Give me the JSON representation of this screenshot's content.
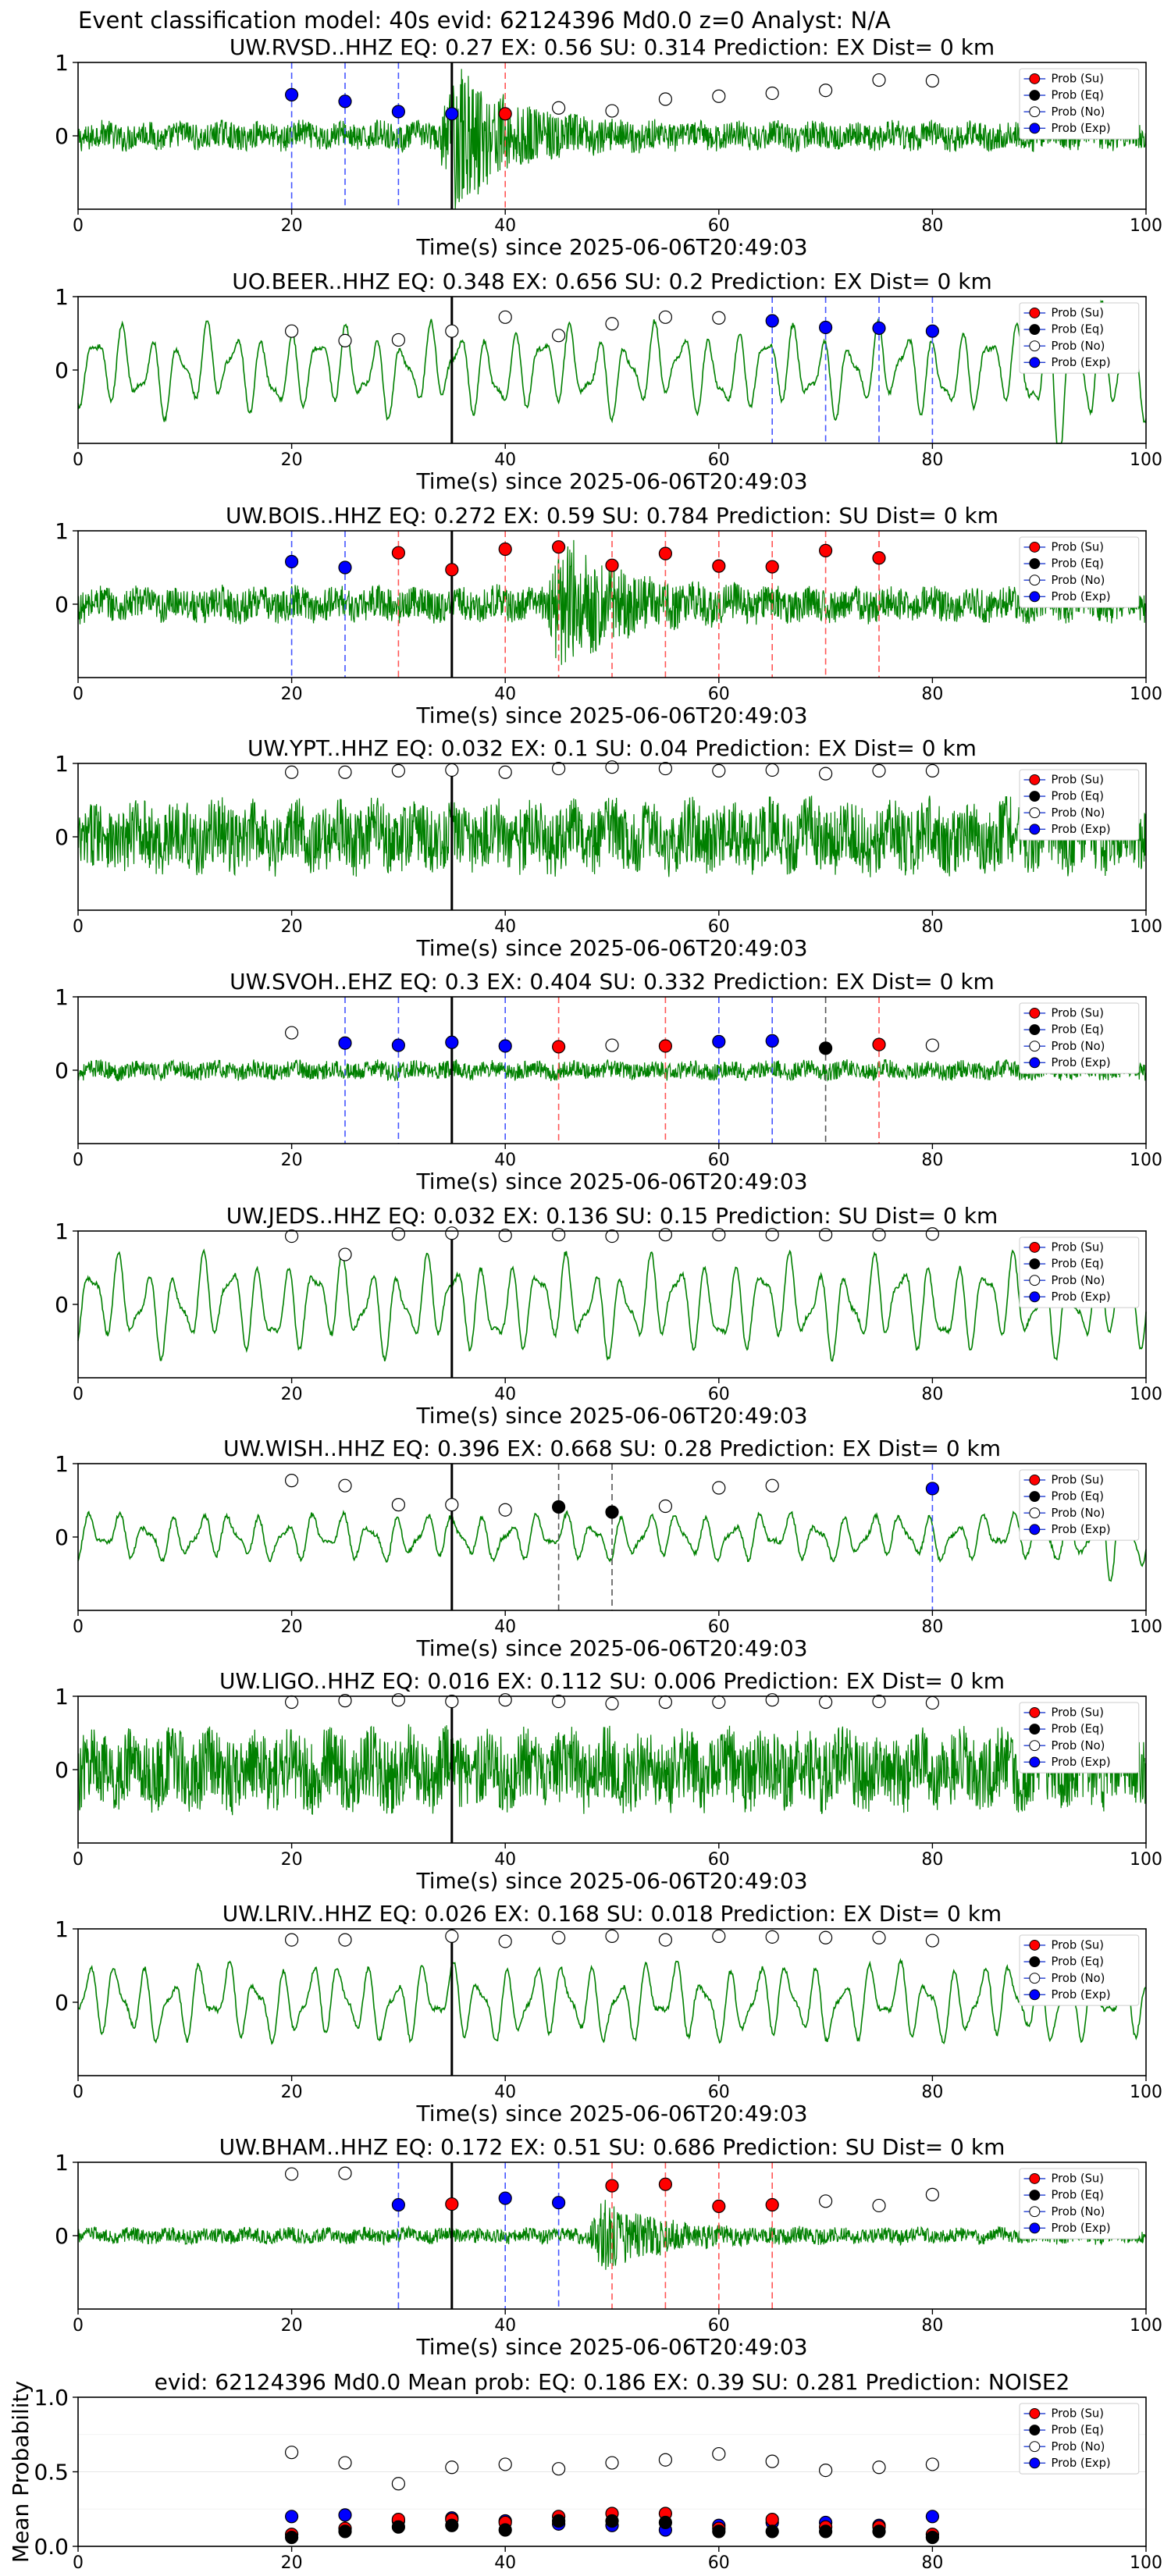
{
  "figure_title": "Event classification model: 40s evid: 62124396 Md0.0 z=0 Analyst: N/A",
  "legend_labels": [
    "Prob (Su)",
    "Prob (Eq)",
    "Prob (No)",
    "Prob (Exp)"
  ],
  "colors": {
    "su": "#ff0000",
    "eq": "#000000",
    "no": "#ffffff",
    "exp": "#0000ff",
    "waveform": "#008000"
  },
  "xlabel": "Time(s) since 2025-06-06T20:49:03",
  "chart_data": [
    {
      "type": "line",
      "title": "UW.RVSD..HHZ   EQ: 0.27  EX: 0.56  SU: 0.314   Prediction: EX    Dist= 0 km",
      "xlabel": "Time(s) since 2025-06-06T20:49:03",
      "xlim": [
        0,
        100
      ],
      "ylim": [
        -1,
        1
      ],
      "xticks": [
        "0",
        "20",
        "40",
        "60",
        "80",
        "100"
      ],
      "yticks": [
        "1",
        "0"
      ],
      "waveform": {
        "style": "noisy",
        "amp": 0.18,
        "event_at": 35,
        "event_amp": 0.95
      },
      "origin_line": 35,
      "markers": [
        {
          "x": 20,
          "y": 0.56,
          "cls": "exp"
        },
        {
          "x": 25,
          "y": 0.47,
          "cls": "exp"
        },
        {
          "x": 30,
          "y": 0.33,
          "cls": "exp"
        },
        {
          "x": 35,
          "y": 0.3,
          "cls": "exp"
        },
        {
          "x": 40,
          "y": 0.3,
          "cls": "su"
        },
        {
          "x": 45,
          "y": 0.38,
          "cls": "no"
        },
        {
          "x": 50,
          "y": 0.34,
          "cls": "no"
        },
        {
          "x": 55,
          "y": 0.5,
          "cls": "no"
        },
        {
          "x": 60,
          "y": 0.54,
          "cls": "no"
        },
        {
          "x": 65,
          "y": 0.58,
          "cls": "no"
        },
        {
          "x": 70,
          "y": 0.62,
          "cls": "no"
        },
        {
          "x": 75,
          "y": 0.76,
          "cls": "no"
        },
        {
          "x": 80,
          "y": 0.75,
          "cls": "no"
        }
      ]
    },
    {
      "type": "line",
      "title": "UO.BEER..HHZ   EQ: 0.348  EX: 0.656  SU: 0.2   Prediction: EX    Dist= 0 km",
      "xlabel": "Time(s) since 2025-06-06T20:49:03",
      "xlim": [
        0,
        100
      ],
      "ylim": [
        -1,
        1
      ],
      "xticks": [
        "0",
        "20",
        "40",
        "60",
        "80",
        "100"
      ],
      "yticks": [
        "1",
        "0"
      ],
      "waveform": {
        "style": "wave",
        "amp": 0.55,
        "event_at": 90,
        "event_amp": 0.7
      },
      "origin_line": 35,
      "markers": [
        {
          "x": 20,
          "y": 0.53,
          "cls": "no"
        },
        {
          "x": 25,
          "y": 0.4,
          "cls": "no"
        },
        {
          "x": 30,
          "y": 0.41,
          "cls": "no"
        },
        {
          "x": 35,
          "y": 0.53,
          "cls": "no"
        },
        {
          "x": 40,
          "y": 0.72,
          "cls": "no"
        },
        {
          "x": 45,
          "y": 0.47,
          "cls": "no"
        },
        {
          "x": 50,
          "y": 0.63,
          "cls": "no"
        },
        {
          "x": 55,
          "y": 0.72,
          "cls": "no"
        },
        {
          "x": 60,
          "y": 0.71,
          "cls": "no"
        },
        {
          "x": 65,
          "y": 0.67,
          "cls": "exp"
        },
        {
          "x": 70,
          "y": 0.58,
          "cls": "exp"
        },
        {
          "x": 75,
          "y": 0.57,
          "cls": "exp"
        },
        {
          "x": 80,
          "y": 0.53,
          "cls": "exp"
        }
      ]
    },
    {
      "type": "line",
      "title": "UW.BOIS..HHZ   EQ: 0.272  EX: 0.59  SU: 0.784   Prediction: SU    Dist= 0 km",
      "xlabel": "Time(s) since 2025-06-06T20:49:03",
      "xlim": [
        0,
        100
      ],
      "ylim": [
        -1,
        1
      ],
      "xticks": [
        "0",
        "20",
        "40",
        "60",
        "80",
        "100"
      ],
      "yticks": [
        "1",
        "0"
      ],
      "waveform": {
        "style": "noisy",
        "amp": 0.22,
        "event_at": 45,
        "event_amp": 0.8
      },
      "origin_line": 35,
      "markers": [
        {
          "x": 20,
          "y": 0.58,
          "cls": "exp"
        },
        {
          "x": 25,
          "y": 0.5,
          "cls": "exp"
        },
        {
          "x": 30,
          "y": 0.7,
          "cls": "su"
        },
        {
          "x": 35,
          "y": 0.47,
          "cls": "su"
        },
        {
          "x": 40,
          "y": 0.75,
          "cls": "su"
        },
        {
          "x": 45,
          "y": 0.78,
          "cls": "su"
        },
        {
          "x": 50,
          "y": 0.53,
          "cls": "su"
        },
        {
          "x": 55,
          "y": 0.69,
          "cls": "su"
        },
        {
          "x": 60,
          "y": 0.52,
          "cls": "su"
        },
        {
          "x": 65,
          "y": 0.51,
          "cls": "su"
        },
        {
          "x": 70,
          "y": 0.73,
          "cls": "su"
        },
        {
          "x": 75,
          "y": 0.63,
          "cls": "su"
        }
      ]
    },
    {
      "type": "line",
      "title": "UW.YPT..HHZ   EQ: 0.032  EX: 0.1  SU: 0.04   Prediction: EX    Dist= 0 km",
      "xlabel": "Time(s) since 2025-06-06T20:49:03",
      "xlim": [
        0,
        100
      ],
      "ylim": [
        -1,
        1
      ],
      "xticks": [
        "0",
        "20",
        "40",
        "60",
        "80",
        "100"
      ],
      "yticks": [
        "1",
        "0"
      ],
      "waveform": {
        "style": "noisy",
        "amp": 0.45,
        "event_at": 0,
        "event_amp": 0
      },
      "origin_line": 35,
      "markers": [
        {
          "x": 20,
          "y": 0.88,
          "cls": "no"
        },
        {
          "x": 25,
          "y": 0.88,
          "cls": "no"
        },
        {
          "x": 30,
          "y": 0.9,
          "cls": "no"
        },
        {
          "x": 35,
          "y": 0.91,
          "cls": "no"
        },
        {
          "x": 40,
          "y": 0.88,
          "cls": "no"
        },
        {
          "x": 45,
          "y": 0.93,
          "cls": "no"
        },
        {
          "x": 50,
          "y": 0.95,
          "cls": "no"
        },
        {
          "x": 55,
          "y": 0.93,
          "cls": "no"
        },
        {
          "x": 60,
          "y": 0.9,
          "cls": "no"
        },
        {
          "x": 65,
          "y": 0.91,
          "cls": "no"
        },
        {
          "x": 70,
          "y": 0.86,
          "cls": "no"
        },
        {
          "x": 75,
          "y": 0.9,
          "cls": "no"
        },
        {
          "x": 80,
          "y": 0.9,
          "cls": "no"
        }
      ]
    },
    {
      "type": "line",
      "title": "UW.SVOH..EHZ   EQ: 0.3  EX: 0.404  SU: 0.332   Prediction: EX    Dist= 0 km",
      "xlabel": "Time(s) since 2025-06-06T20:49:03",
      "xlim": [
        0,
        100
      ],
      "ylim": [
        -1,
        1
      ],
      "xticks": [
        "0",
        "20",
        "40",
        "60",
        "80",
        "100"
      ],
      "yticks": [
        "1",
        "0"
      ],
      "waveform": {
        "style": "noisy",
        "amp": 0.12,
        "event_at": 0,
        "event_amp": 0
      },
      "origin_line": 35,
      "markers": [
        {
          "x": 20,
          "y": 0.51,
          "cls": "no"
        },
        {
          "x": 25,
          "y": 0.37,
          "cls": "exp"
        },
        {
          "x": 30,
          "y": 0.34,
          "cls": "exp"
        },
        {
          "x": 35,
          "y": 0.38,
          "cls": "exp"
        },
        {
          "x": 40,
          "y": 0.33,
          "cls": "exp"
        },
        {
          "x": 45,
          "y": 0.32,
          "cls": "su"
        },
        {
          "x": 50,
          "y": 0.34,
          "cls": "no"
        },
        {
          "x": 55,
          "y": 0.33,
          "cls": "su"
        },
        {
          "x": 60,
          "y": 0.39,
          "cls": "exp"
        },
        {
          "x": 65,
          "y": 0.4,
          "cls": "exp"
        },
        {
          "x": 70,
          "y": 0.3,
          "cls": "eq"
        },
        {
          "x": 75,
          "y": 0.35,
          "cls": "su"
        },
        {
          "x": 80,
          "y": 0.34,
          "cls": "no"
        }
      ]
    },
    {
      "type": "line",
      "title": "UW.JEDS..HHZ   EQ: 0.032  EX: 0.136  SU: 0.15   Prediction: SU    Dist= 0 km",
      "xlabel": "Time(s) since 2025-06-06T20:49:03",
      "xlim": [
        0,
        100
      ],
      "ylim": [
        -1,
        1
      ],
      "xticks": [
        "0",
        "20",
        "40",
        "60",
        "80",
        "100"
      ],
      "yticks": [
        "1",
        "0"
      ],
      "waveform": {
        "style": "wave",
        "amp": 0.6,
        "event_at": 0,
        "event_amp": 0
      },
      "origin_line": 35,
      "markers": [
        {
          "x": 20,
          "y": 0.93,
          "cls": "no"
        },
        {
          "x": 25,
          "y": 0.68,
          "cls": "no"
        },
        {
          "x": 30,
          "y": 0.96,
          "cls": "no"
        },
        {
          "x": 35,
          "y": 0.97,
          "cls": "no"
        },
        {
          "x": 40,
          "y": 0.94,
          "cls": "no"
        },
        {
          "x": 45,
          "y": 0.95,
          "cls": "no"
        },
        {
          "x": 50,
          "y": 0.93,
          "cls": "no"
        },
        {
          "x": 55,
          "y": 0.95,
          "cls": "no"
        },
        {
          "x": 60,
          "y": 0.95,
          "cls": "no"
        },
        {
          "x": 65,
          "y": 0.95,
          "cls": "no"
        },
        {
          "x": 70,
          "y": 0.95,
          "cls": "no"
        },
        {
          "x": 75,
          "y": 0.95,
          "cls": "no"
        },
        {
          "x": 80,
          "y": 0.96,
          "cls": "no"
        }
      ]
    },
    {
      "type": "line",
      "title": "UW.WISH..HHZ   EQ: 0.396  EX: 0.668  SU: 0.28   Prediction: EX    Dist= 0 km",
      "xlabel": "Time(s) since 2025-06-06T20:49:03",
      "xlim": [
        0,
        100
      ],
      "ylim": [
        -1,
        1
      ],
      "xticks": [
        "0",
        "20",
        "40",
        "60",
        "80",
        "100"
      ],
      "yticks": [
        "1",
        "0"
      ],
      "waveform": {
        "style": "wave",
        "amp": 0.3,
        "event_at": 95,
        "event_amp": 0.6
      },
      "origin_line": 35,
      "markers": [
        {
          "x": 20,
          "y": 0.77,
          "cls": "no"
        },
        {
          "x": 25,
          "y": 0.7,
          "cls": "no"
        },
        {
          "x": 30,
          "y": 0.44,
          "cls": "no"
        },
        {
          "x": 35,
          "y": 0.44,
          "cls": "no"
        },
        {
          "x": 40,
          "y": 0.37,
          "cls": "no"
        },
        {
          "x": 45,
          "y": 0.41,
          "cls": "eq"
        },
        {
          "x": 50,
          "y": 0.34,
          "cls": "eq"
        },
        {
          "x": 55,
          "y": 0.42,
          "cls": "no"
        },
        {
          "x": 60,
          "y": 0.67,
          "cls": "no"
        },
        {
          "x": 65,
          "y": 0.7,
          "cls": "no"
        },
        {
          "x": 80,
          "y": 0.66,
          "cls": "exp"
        }
      ]
    },
    {
      "type": "line",
      "title": "UW.LIGO..HHZ   EQ: 0.016  EX: 0.112  SU: 0.006   Prediction: EX    Dist= 0 km",
      "xlabel": "Time(s) since 2025-06-06T20:49:03",
      "xlim": [
        0,
        100
      ],
      "ylim": [
        -1,
        1
      ],
      "xticks": [
        "0",
        "20",
        "40",
        "60",
        "80",
        "100"
      ],
      "yticks": [
        "1",
        "0"
      ],
      "waveform": {
        "style": "noisy",
        "amp": 0.5,
        "event_at": 0,
        "event_amp": 0
      },
      "origin_line": 35,
      "markers": [
        {
          "x": 20,
          "y": 0.92,
          "cls": "no"
        },
        {
          "x": 25,
          "y": 0.94,
          "cls": "no"
        },
        {
          "x": 30,
          "y": 0.95,
          "cls": "no"
        },
        {
          "x": 35,
          "y": 0.93,
          "cls": "no"
        },
        {
          "x": 40,
          "y": 0.95,
          "cls": "no"
        },
        {
          "x": 45,
          "y": 0.93,
          "cls": "no"
        },
        {
          "x": 50,
          "y": 0.9,
          "cls": "no"
        },
        {
          "x": 55,
          "y": 0.92,
          "cls": "no"
        },
        {
          "x": 60,
          "y": 0.92,
          "cls": "no"
        },
        {
          "x": 65,
          "y": 0.95,
          "cls": "no"
        },
        {
          "x": 70,
          "y": 0.92,
          "cls": "no"
        },
        {
          "x": 75,
          "y": 0.93,
          "cls": "no"
        },
        {
          "x": 80,
          "y": 0.91,
          "cls": "no"
        }
      ]
    },
    {
      "type": "line",
      "title": "UW.LRIV..HHZ   EQ: 0.026  EX: 0.168  SU: 0.018   Prediction: EX    Dist= 0 km",
      "xlabel": "Time(s) since 2025-06-06T20:49:03",
      "xlim": [
        0,
        100
      ],
      "ylim": [
        -1,
        1
      ],
      "xticks": [
        "0",
        "20",
        "40",
        "60",
        "80",
        "100"
      ],
      "yticks": [
        "1",
        "0"
      ],
      "waveform": {
        "style": "wave",
        "amp": 0.5,
        "event_at": 0,
        "event_amp": 0
      },
      "origin_line": 35,
      "markers": [
        {
          "x": 20,
          "y": 0.85,
          "cls": "no"
        },
        {
          "x": 25,
          "y": 0.85,
          "cls": "no"
        },
        {
          "x": 35,
          "y": 0.9,
          "cls": "no"
        },
        {
          "x": 40,
          "y": 0.83,
          "cls": "no"
        },
        {
          "x": 45,
          "y": 0.88,
          "cls": "no"
        },
        {
          "x": 50,
          "y": 0.9,
          "cls": "no"
        },
        {
          "x": 55,
          "y": 0.85,
          "cls": "no"
        },
        {
          "x": 60,
          "y": 0.9,
          "cls": "no"
        },
        {
          "x": 65,
          "y": 0.89,
          "cls": "no"
        },
        {
          "x": 70,
          "y": 0.88,
          "cls": "no"
        },
        {
          "x": 75,
          "y": 0.88,
          "cls": "no"
        },
        {
          "x": 80,
          "y": 0.84,
          "cls": "no"
        }
      ]
    },
    {
      "type": "line",
      "title": "UW.BHAM..HHZ   EQ: 0.172  EX: 0.51  SU: 0.686   Prediction: SU    Dist= 0 km",
      "xlabel": "Time(s) since 2025-06-06T20:49:03",
      "xlim": [
        0,
        100
      ],
      "ylim": [
        -1,
        1
      ],
      "xticks": [
        "0",
        "20",
        "40",
        "60",
        "80",
        "100"
      ],
      "yticks": [
        "1",
        "0"
      ],
      "waveform": {
        "style": "noisy",
        "amp": 0.1,
        "event_at": 49,
        "event_amp": 0.45
      },
      "origin_line": 35,
      "markers": [
        {
          "x": 20,
          "y": 0.84,
          "cls": "no"
        },
        {
          "x": 25,
          "y": 0.85,
          "cls": "no"
        },
        {
          "x": 30,
          "y": 0.42,
          "cls": "exp"
        },
        {
          "x": 35,
          "y": 0.43,
          "cls": "su"
        },
        {
          "x": 40,
          "y": 0.51,
          "cls": "exp"
        },
        {
          "x": 45,
          "y": 0.45,
          "cls": "exp"
        },
        {
          "x": 50,
          "y": 0.68,
          "cls": "su"
        },
        {
          "x": 55,
          "y": 0.7,
          "cls": "su"
        },
        {
          "x": 60,
          "y": 0.4,
          "cls": "su"
        },
        {
          "x": 65,
          "y": 0.42,
          "cls": "su"
        },
        {
          "x": 70,
          "y": 0.47,
          "cls": "no"
        },
        {
          "x": 75,
          "y": 0.41,
          "cls": "no"
        },
        {
          "x": 80,
          "y": 0.56,
          "cls": "no"
        }
      ]
    },
    {
      "type": "scatter",
      "title": "evid: 62124396  Md0.0   Mean prob:   EQ: 0.186  EX: 0.39  SU: 0.281   Prediction: NOISE2",
      "ylabel": "Mean Probability",
      "xlim": [
        0,
        100
      ],
      "ylim": [
        0,
        1
      ],
      "xticks": [
        "0",
        "20",
        "40",
        "60",
        "80",
        "100"
      ],
      "yticks": [
        "1.0",
        "0.5",
        "0.0"
      ],
      "x": [
        20,
        25,
        30,
        35,
        40,
        45,
        50,
        55,
        60,
        65,
        70,
        75,
        80
      ],
      "series": [
        {
          "name": "Prob (No)",
          "cls": "no",
          "values": [
            0.63,
            0.56,
            0.42,
            0.53,
            0.55,
            0.52,
            0.56,
            0.58,
            0.62,
            0.57,
            0.51,
            0.53,
            0.55
          ]
        },
        {
          "name": "Prob (Exp)",
          "cls": "exp",
          "values": [
            0.2,
            0.21,
            0.17,
            0.19,
            0.17,
            0.15,
            0.14,
            0.11,
            0.14,
            0.16,
            0.16,
            0.14,
            0.2
          ]
        },
        {
          "name": "Prob (Su)",
          "cls": "su",
          "values": [
            0.08,
            0.12,
            0.18,
            0.18,
            0.16,
            0.2,
            0.22,
            0.22,
            0.12,
            0.18,
            0.13,
            0.13,
            0.08
          ]
        },
        {
          "name": "Prob (Eq)",
          "cls": "eq",
          "values": [
            0.06,
            0.1,
            0.13,
            0.14,
            0.11,
            0.17,
            0.17,
            0.16,
            0.1,
            0.1,
            0.1,
            0.1,
            0.06
          ]
        }
      ]
    }
  ]
}
